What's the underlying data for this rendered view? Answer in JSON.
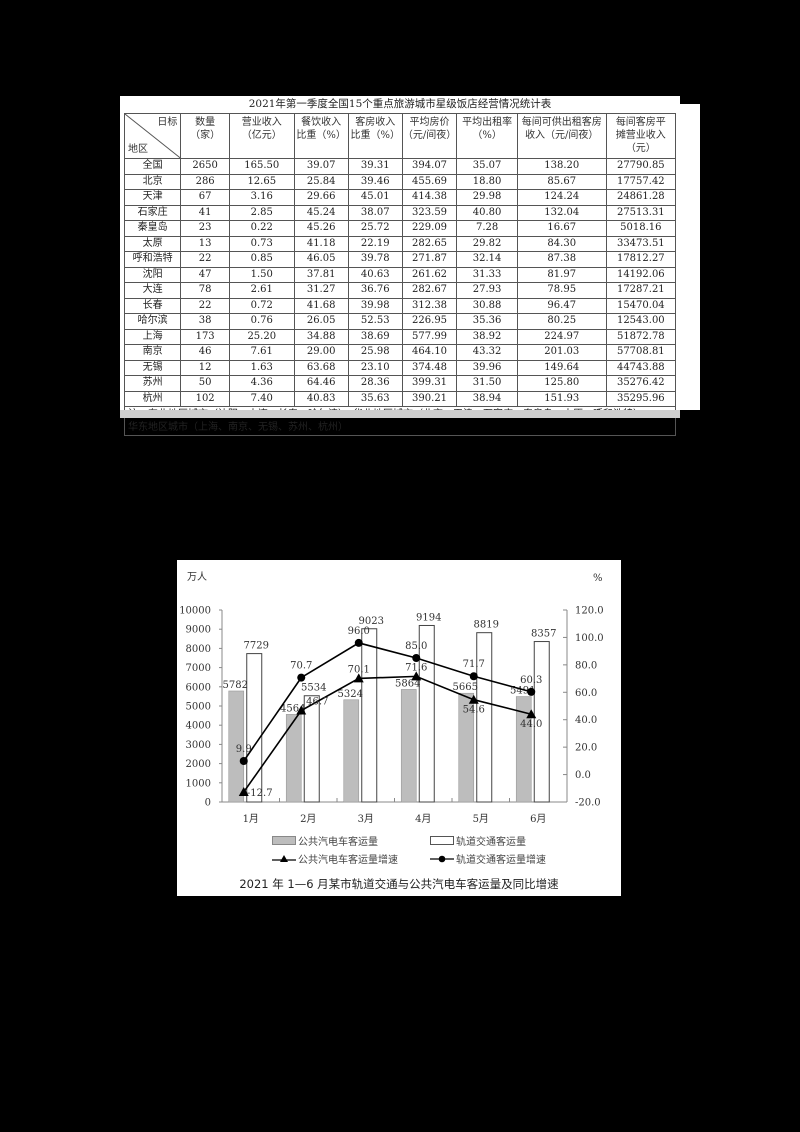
{
  "table": {
    "title": "2021年第一季度全国15个重点旅游城市星级饭店经营情况统计表",
    "corner_top_right": "日标",
    "corner_bottom_left": "地区",
    "columns": [
      "数量（家）",
      "营业收入（亿元）",
      "餐饮收入比重（%）",
      "客房收入比重（%）",
      "平均房价（元/间夜）",
      "平均出租率（%）",
      "每间可供出租客房收入（元/间夜）",
      "每间客房平摊营业收入（元）"
    ],
    "column_lines": [
      [
        "数量",
        "（家）"
      ],
      [
        "营业收入",
        "（亿元）"
      ],
      [
        "餐饮收入",
        "比重（%）"
      ],
      [
        "客房收入",
        "比重（%）"
      ],
      [
        "平均房价",
        "（元/间夜）"
      ],
      [
        "平均出租率",
        "（%）"
      ],
      [
        "每间可供出租客房",
        "收入（元/间夜）"
      ],
      [
        "每间客房平",
        "摊营业收入",
        "（元）"
      ]
    ],
    "rows": [
      {
        "region": "全国",
        "values": [
          "2650",
          "165.50",
          "39.07",
          "39.31",
          "394.07",
          "35.07",
          "138.20",
          "27790.85"
        ]
      },
      {
        "region": "北京",
        "values": [
          "286",
          "12.65",
          "25.84",
          "39.46",
          "455.69",
          "18.80",
          "85.67",
          "17757.42"
        ]
      },
      {
        "region": "天津",
        "values": [
          "67",
          "3.16",
          "29.66",
          "45.01",
          "414.38",
          "29.98",
          "124.24",
          "24861.28"
        ]
      },
      {
        "region": "石家庄",
        "values": [
          "41",
          "2.85",
          "45.24",
          "38.07",
          "323.59",
          "40.80",
          "132.04",
          "27513.31"
        ]
      },
      {
        "region": "秦皇岛",
        "values": [
          "23",
          "0.22",
          "45.26",
          "25.72",
          "229.09",
          "7.28",
          "16.67",
          "5018.16"
        ]
      },
      {
        "region": "太原",
        "values": [
          "13",
          "0.73",
          "41.18",
          "22.19",
          "282.65",
          "29.82",
          "84.30",
          "33473.51"
        ]
      },
      {
        "region": "呼和浩特",
        "values": [
          "22",
          "0.85",
          "46.05",
          "39.78",
          "271.87",
          "32.14",
          "87.38",
          "17812.27"
        ]
      },
      {
        "region": "沈阳",
        "values": [
          "47",
          "1.50",
          "37.81",
          "40.63",
          "261.62",
          "31.33",
          "81.97",
          "14192.06"
        ]
      },
      {
        "region": "大连",
        "values": [
          "78",
          "2.61",
          "31.27",
          "36.76",
          "282.67",
          "27.93",
          "78.95",
          "17287.21"
        ]
      },
      {
        "region": "长春",
        "values": [
          "22",
          "0.72",
          "41.68",
          "39.98",
          "312.38",
          "30.88",
          "96.47",
          "15470.04"
        ]
      },
      {
        "region": "哈尔滨",
        "values": [
          "38",
          "0.76",
          "26.05",
          "52.53",
          "226.95",
          "35.36",
          "80.25",
          "12543.00"
        ]
      },
      {
        "region": "上海",
        "values": [
          "173",
          "25.20",
          "34.88",
          "38.69",
          "577.99",
          "38.92",
          "224.97",
          "51872.78"
        ]
      },
      {
        "region": "南京",
        "values": [
          "46",
          "7.61",
          "29.00",
          "25.98",
          "464.10",
          "43.32",
          "201.03",
          "57708.81"
        ]
      },
      {
        "region": "无锡",
        "values": [
          "12",
          "1.63",
          "63.68",
          "23.10",
          "374.48",
          "39.96",
          "149.64",
          "44743.88"
        ]
      },
      {
        "region": "苏州",
        "values": [
          "50",
          "4.36",
          "64.46",
          "28.36",
          "399.31",
          "31.50",
          "125.80",
          "35276.42"
        ]
      },
      {
        "region": "杭州",
        "values": [
          "102",
          "7.40",
          "40.83",
          "35.63",
          "390.21",
          "38.94",
          "151.93",
          "35295.96"
        ]
      }
    ],
    "note_line1": "注：东北地区城市（沈阳、大连、长春、哈尔滨）、华北地区城市（北京、天津、石家庄、秦皇岛、太原、呼和浩特）、",
    "note_line2": "华东地区城市（上海、南京、无锡、苏州、杭州）"
  },
  "chart": {
    "left_unit": "万人",
    "right_unit": "%",
    "caption": "2021 年 1—6 月某市轨道交通与公共汽电车客运量及同比增速",
    "legend": {
      "bus_volume": "公共汽电车客运量",
      "rail_volume": "轨道交通客运量",
      "bus_growth": "公共汽电车客运量增速",
      "rail_growth": "轨道交通客运量增速"
    },
    "colors": {
      "bus_bar": "#bdbdbd",
      "rail_bar": "#ffffff",
      "line": "#000000"
    }
  },
  "chart_data": {
    "type": "bar",
    "title": "2021 年 1—6 月某市轨道交通与公共汽电车客运量及同比增速",
    "categories": [
      "1月",
      "2月",
      "3月",
      "4月",
      "5月",
      "6月"
    ],
    "series": [
      {
        "name": "公共汽电车客运量",
        "type": "bar",
        "axis": "left",
        "values": [
          5782,
          4564,
          5324,
          5864,
          5665,
          5491
        ]
      },
      {
        "name": "轨道交通客运量",
        "type": "bar",
        "axis": "left",
        "values": [
          7729,
          5534,
          9023,
          9194,
          8819,
          8357
        ]
      },
      {
        "name": "公共汽电车客运量增速",
        "type": "line",
        "marker": "triangle",
        "axis": "right",
        "values": [
          -12.7,
          46.7,
          70.1,
          71.6,
          54.6,
          44.0
        ]
      },
      {
        "name": "轨道交通客运量增速",
        "type": "line",
        "marker": "circle",
        "axis": "right",
        "values": [
          9.9,
          70.7,
          96.0,
          85.0,
          71.7,
          60.3
        ]
      }
    ],
    "ylabel_left": "万人",
    "ylabel_right": "%",
    "ylim_left": [
      0,
      10000
    ],
    "ylim_right": [
      -20.0,
      120.0
    ],
    "yticks_left": [
      "0",
      "1000",
      "2000",
      "3000",
      "4000",
      "5000",
      "6000",
      "7000",
      "8000",
      "9000",
      "10000"
    ],
    "yticks_right": [
      "-20.0",
      "0.0",
      "20.0",
      "40.0",
      "60.0",
      "80.0",
      "100.0",
      "120.0"
    ],
    "grid": false,
    "legend_position": "bottom"
  }
}
